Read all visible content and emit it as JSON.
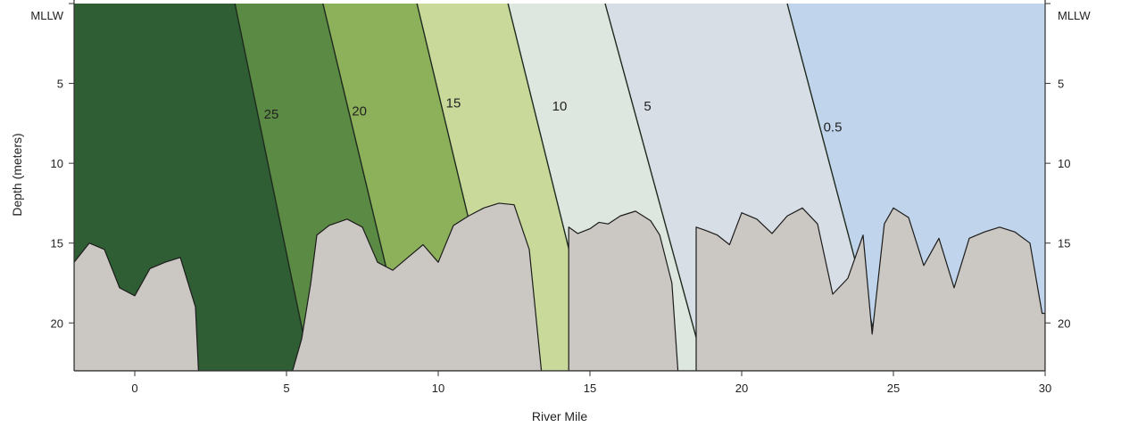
{
  "chart_data": {
    "type": "area",
    "xlabel": "River Mile",
    "ylabel": "Depth (meters)",
    "xlim": [
      -2,
      30
    ],
    "ylim": [
      0,
      23
    ],
    "y_inverted": true,
    "x_ticks": [
      "0",
      "5",
      "10",
      "15",
      "20",
      "25",
      "30"
    ],
    "y_ticks": [
      "MLLW",
      "5",
      "10",
      "15",
      "20"
    ],
    "y_tick_values": [
      0,
      5,
      10,
      15,
      20
    ],
    "x_tick_values": [
      0,
      5,
      10,
      15,
      20,
      25,
      30
    ],
    "isolines": [
      {
        "label": "25",
        "top_x": 3.3,
        "bottom_x": 5.8,
        "label_x": 4.5,
        "label_y": 7.2,
        "fill": "#2f5e34"
      },
      {
        "label": "20",
        "top_x": 6.2,
        "bottom_x": 9.1,
        "label_x": 7.4,
        "label_y": 7.0,
        "fill": "#5a8a43"
      },
      {
        "label": "15",
        "top_x": 9.3,
        "bottom_x": 12.2,
        "label_x": 10.5,
        "label_y": 6.5,
        "fill": "#8cb15a"
      },
      {
        "label": "10",
        "top_x": 12.3,
        "bottom_x": 15.3,
        "label_x": 14.0,
        "label_y": 6.7,
        "fill": "#c9d99a"
      },
      {
        "label": "5",
        "top_x": 15.5,
        "bottom_x": 18.8,
        "label_x": 16.9,
        "label_y": 6.7,
        "fill": "#dde6df"
      },
      {
        "label": "0.5",
        "top_x": 21.5,
        "bottom_x": 24.7,
        "label_x": 23.0,
        "label_y": 8.0,
        "fill": "#d8dee6"
      }
    ],
    "last_fill": "#c0d4eb",
    "bottom_profile": {
      "x": [
        -2.0,
        -1.5,
        -1.0,
        -0.5,
        0.0,
        0.5,
        1.0,
        1.5,
        2.0,
        2.1,
        5.2,
        5.5,
        5.8,
        6.0,
        6.4,
        7.0,
        7.5,
        8.0,
        8.5,
        9.0,
        9.5,
        10.0,
        10.5,
        11.0,
        11.5,
        12.0,
        12.5,
        13.0,
        13.4,
        13.7,
        14.3,
        14.3,
        14.6,
        15.0,
        15.3,
        15.6,
        16.0,
        16.5,
        17.0,
        17.3,
        17.7,
        17.9,
        18.5,
        18.5,
        18.8,
        19.2,
        19.6,
        20.0,
        20.5,
        21.0,
        21.5,
        22.0,
        22.5,
        23.0,
        23.5,
        24.0,
        24.3,
        24.7,
        25.0,
        25.5,
        26.0,
        26.5,
        27.0,
        27.5,
        28.0,
        28.5,
        29.0,
        29.5,
        29.9,
        30.0
      ],
      "depth": [
        16.2,
        15.0,
        15.4,
        17.8,
        18.3,
        16.6,
        16.2,
        15.9,
        19.0,
        23.0,
        23.0,
        21.0,
        17.5,
        14.5,
        13.9,
        13.5,
        14.0,
        16.2,
        16.7,
        15.9,
        15.1,
        16.2,
        13.9,
        13.3,
        12.8,
        12.5,
        12.6,
        15.4,
        23.0,
        23.0,
        23.0,
        14.0,
        14.4,
        14.1,
        13.7,
        13.8,
        13.3,
        13.0,
        13.6,
        14.5,
        17.5,
        23.0,
        23.0,
        14.0,
        14.2,
        14.5,
        15.1,
        13.1,
        13.5,
        14.4,
        13.3,
        12.8,
        13.8,
        18.2,
        17.2,
        14.5,
        20.7,
        13.8,
        12.8,
        13.4,
        16.4,
        14.7,
        17.8,
        14.7,
        14.3,
        14.0,
        14.3,
        15.0,
        19.4,
        19.4
      ],
      "fill": "#cbc7c2"
    },
    "grid": false,
    "legend": "none"
  }
}
